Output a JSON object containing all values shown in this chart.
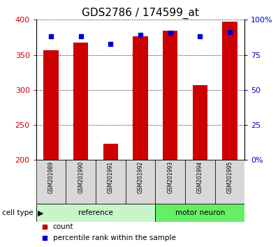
{
  "title": "GDS2786 / 174599_at",
  "samples": [
    "GSM201989",
    "GSM201990",
    "GSM201991",
    "GSM201992",
    "GSM201993",
    "GSM201994",
    "GSM201995"
  ],
  "red_values": [
    357,
    367,
    223,
    376,
    384,
    307,
    397
  ],
  "blue_values": [
    376,
    376,
    365,
    378,
    381,
    376,
    382
  ],
  "y_min": 200,
  "y_max": 400,
  "y_ticks": [
    200,
    250,
    300,
    350,
    400
  ],
  "right_y_ticks": [
    0,
    25,
    50,
    75,
    100
  ],
  "right_y_labels": [
    "0%",
    "25",
    "50",
    "75",
    "100%"
  ],
  "reference_indices": [
    0,
    1,
    2,
    3
  ],
  "motor_indices": [
    4,
    5,
    6
  ],
  "ref_color": "#c8f5c8",
  "motor_color": "#66ee66",
  "bar_color": "#cc0000",
  "dot_color": "#0000cc",
  "sample_bg": "#d8d8d8",
  "bar_width": 0.5
}
